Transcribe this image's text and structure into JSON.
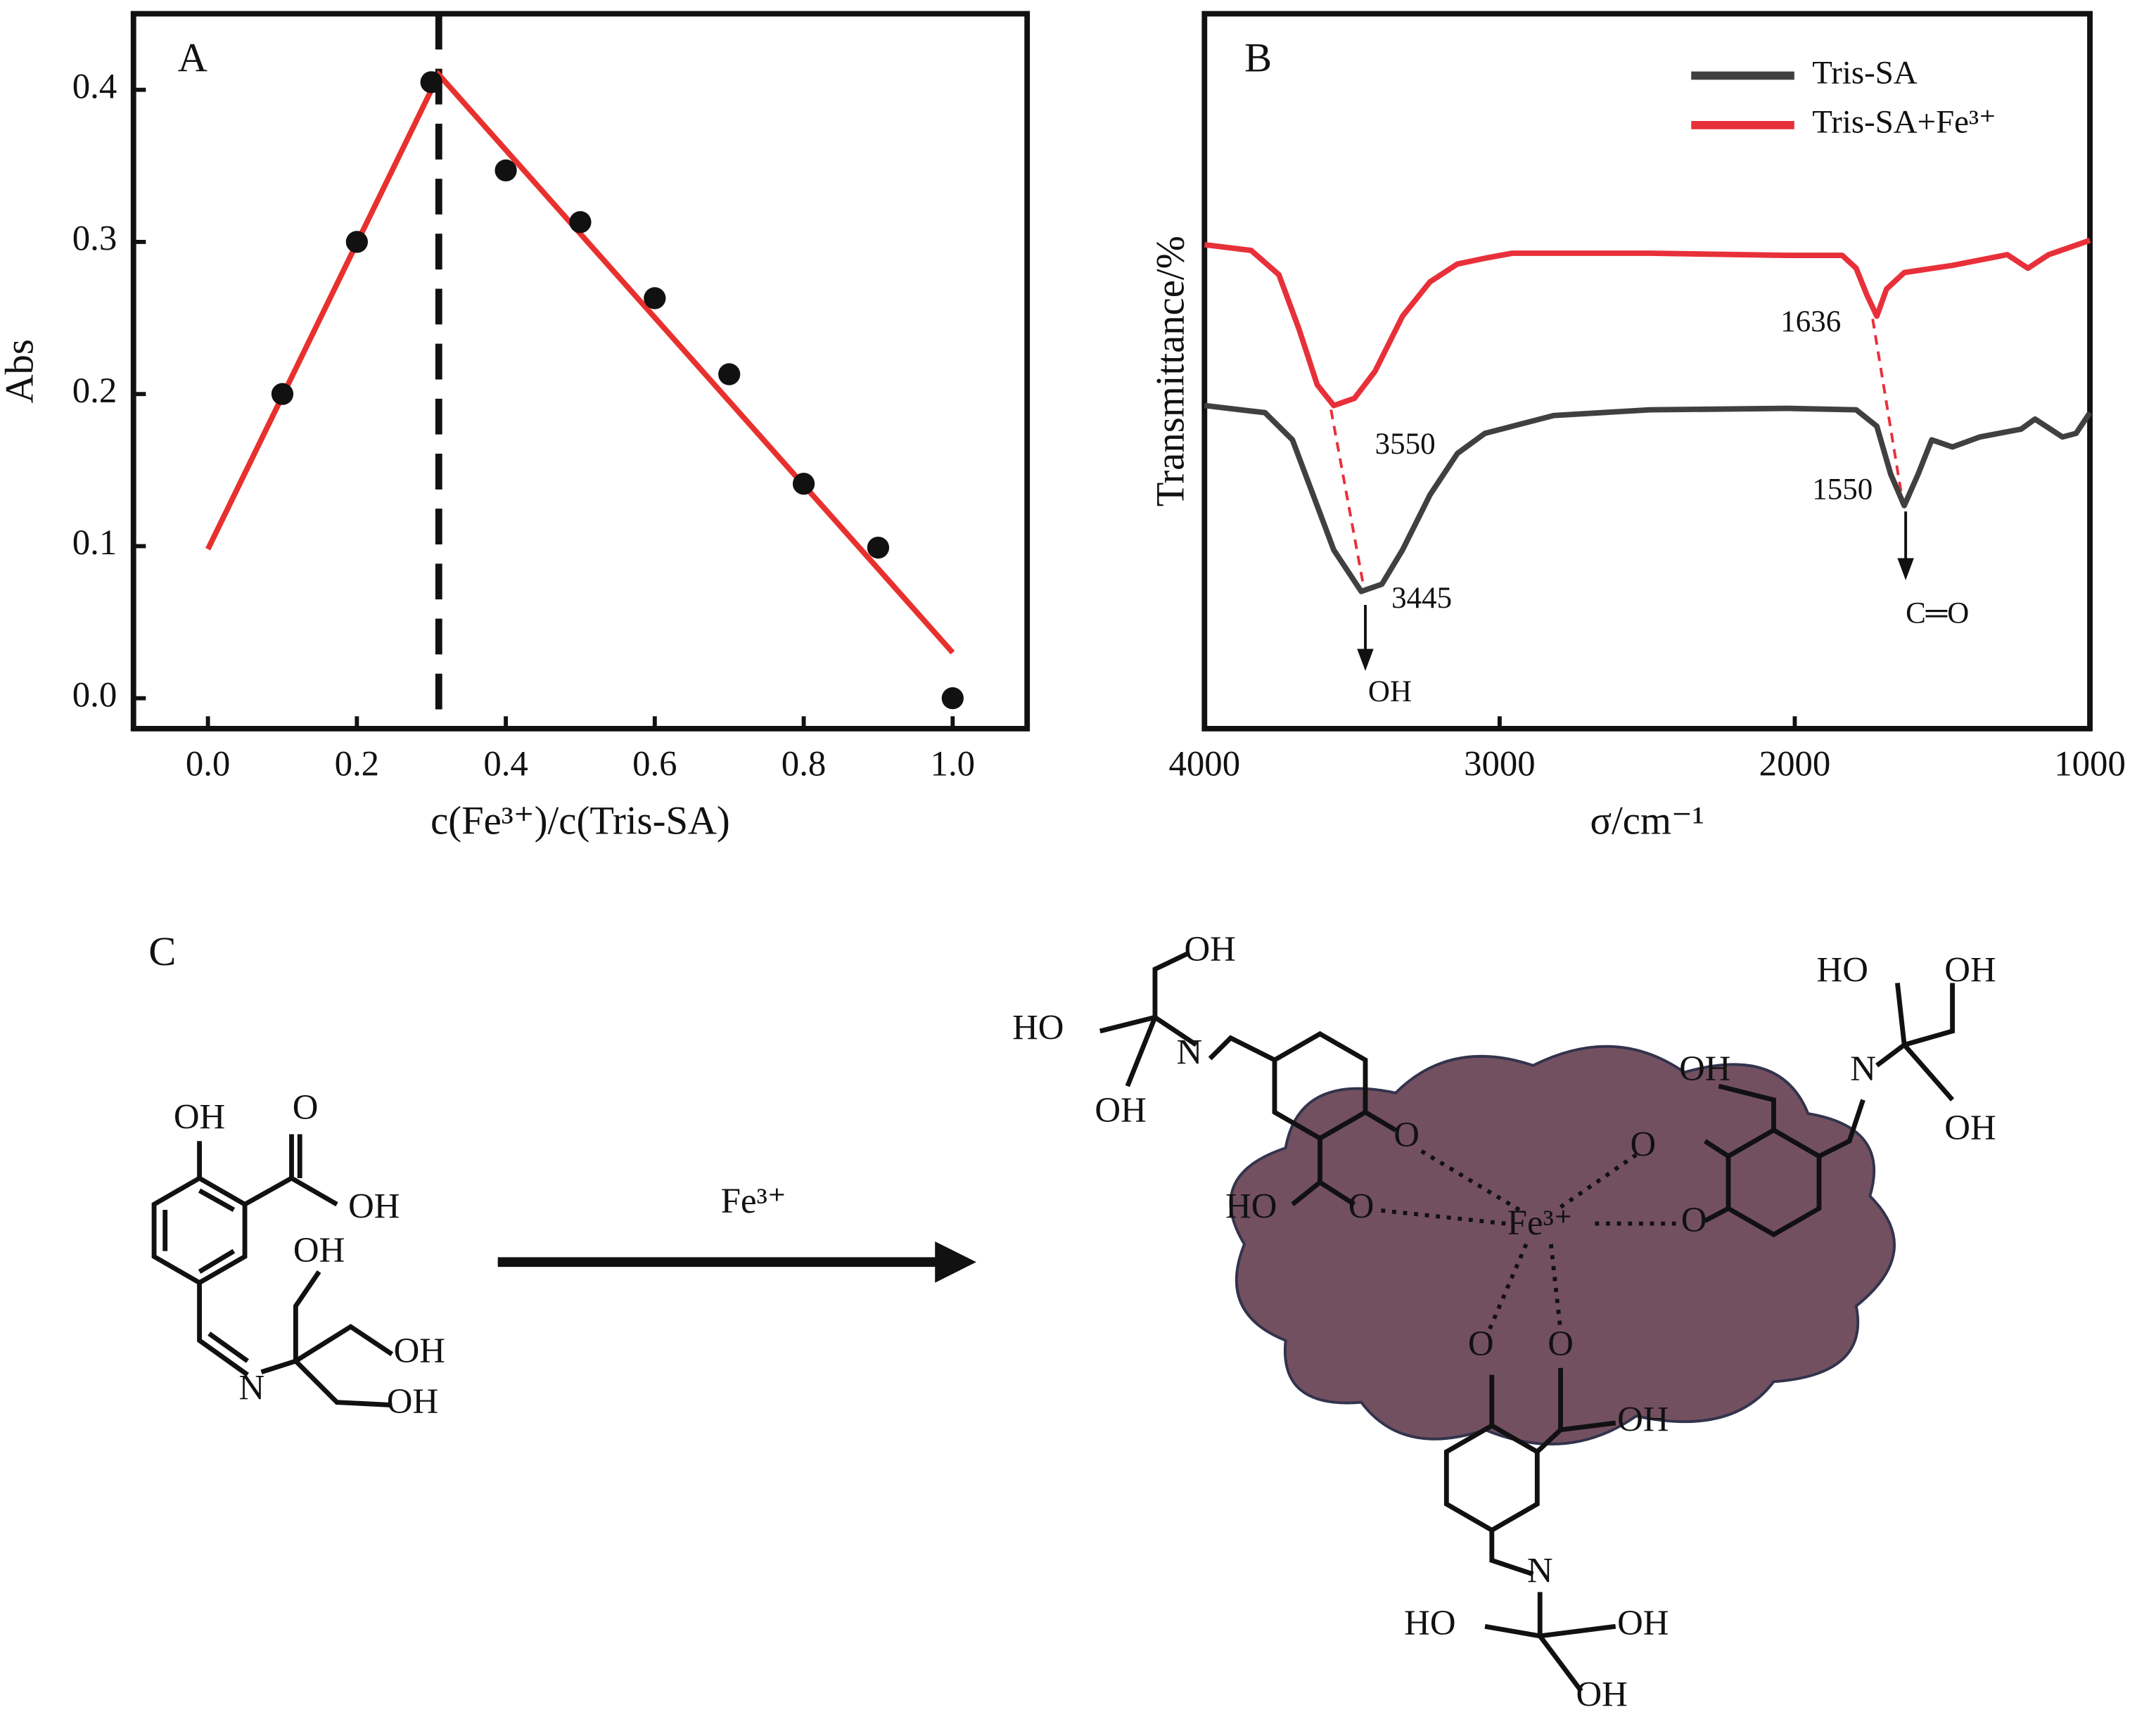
{
  "chart_data": [
    {
      "type": "scatter",
      "panel_label": "A",
      "xlabel": "c(Fe³⁺)/c(Tris-SA)",
      "ylabel": "Abs",
      "x": [
        0.1,
        0.2,
        0.3,
        0.4,
        0.5,
        0.6,
        0.7,
        0.8,
        0.9,
        1.0
      ],
      "values": [
        0.2,
        0.3,
        0.405,
        0.347,
        0.313,
        0.263,
        0.213,
        0.141,
        0.099,
        0.0
      ],
      "color": "#111111",
      "fit_line": {
        "color": "#e8302e",
        "x": [
          0,
          0.31,
          1.0
        ],
        "values": [
          0.098,
          0.41,
          0.03
        ]
      },
      "vline": 0.31,
      "xlim": [
        -0.1,
        1.1
      ],
      "ylim": [
        -0.02,
        0.45
      ],
      "xticks": [
        {
          "value": 0,
          "label": "0.0"
        },
        0.2,
        0.4,
        0.6,
        0.8,
        {
          "value": 1,
          "label": "1.0"
        }
      ],
      "yticks": [
        {
          "value": 0,
          "label": "0.0"
        },
        0.1,
        0.2,
        0.3,
        0.4
      ]
    },
    {
      "type": "line",
      "panel_label": "B",
      "xlabel": "σ/cm⁻¹",
      "ylabel": "Transmittance/%",
      "series": [
        {
          "name": "Tris-SA",
          "color": "#404040",
          "x": [
            4000,
            3795,
            3702,
            3632,
            3562,
            3469,
            3399,
            3329,
            3236,
            3143,
            3050,
            2957,
            2817,
            2491,
            2025,
            1792,
            1722,
            1675,
            1629,
            1582,
            1536,
            1466,
            1373,
            1233,
            1186,
            1093,
            1047,
            1000
          ],
          "values": [
            45.2,
            44.2,
            40.4,
            32.7,
            25.0,
            19.2,
            20.2,
            25.0,
            32.7,
            38.5,
            41.3,
            42.3,
            43.8,
            44.6,
            44.8,
            44.6,
            42.3,
            35.6,
            31.2,
            35.6,
            40.4,
            39.4,
            40.8,
            41.9,
            43.3,
            40.8,
            41.3,
            44.2
          ]
        },
        {
          "name": "Tris-SA+Fe³⁺",
          "color": "#e8303a",
          "x": [
            4000,
            3842,
            3748,
            3679,
            3618,
            3562,
            3492,
            3422,
            3329,
            3236,
            3143,
            3050,
            2957,
            2491,
            2025,
            1839,
            1792,
            1755,
            1722,
            1689,
            1629,
            1466,
            1280,
            1210,
            1140,
            1000
          ],
          "values": [
            67.7,
            66.9,
            63.5,
            55.8,
            48.1,
            45.2,
            46.2,
            50.0,
            57.7,
            62.5,
            65.0,
            65.8,
            66.5,
            66.5,
            66.2,
            66.2,
            64.4,
            60.6,
            57.7,
            61.5,
            63.8,
            64.8,
            66.3,
            64.4,
            66.3,
            68.3
          ]
        }
      ],
      "annotations": [
        "3550",
        "3445",
        "1636",
        "1550",
        "OH",
        "C═O"
      ],
      "legend": "upper right",
      "xlim": [
        4000,
        1000
      ],
      "ylim": [
        0,
        100
      ],
      "xticks": [
        4000,
        3000,
        2000,
        1000
      ]
    }
  ],
  "scheme": {
    "label": "C",
    "reagent": "Fe³⁺",
    "reactant": [
      "OH",
      "O",
      "OH",
      "OH",
      "OH",
      "OH",
      "N"
    ],
    "product": [
      "OH",
      "HO",
      "N",
      "OH",
      "O",
      "HO",
      "O",
      "Fe³⁺",
      "OH",
      "O",
      "O",
      "HO",
      "OH",
      "N",
      "OH",
      "O",
      "O",
      "OH",
      "N",
      "HO",
      "OH",
      "OH"
    ]
  }
}
